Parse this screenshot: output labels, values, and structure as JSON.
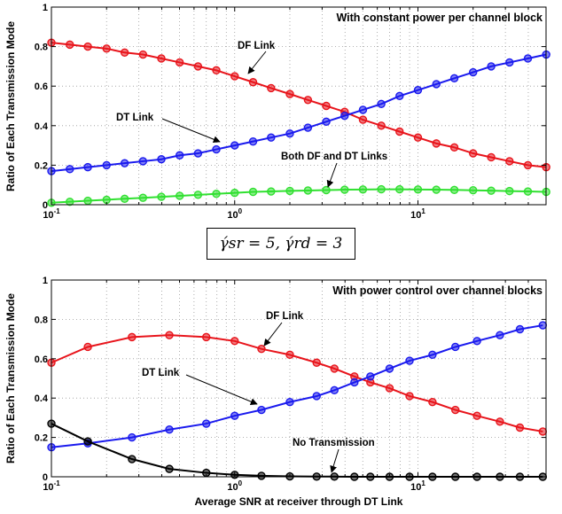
{
  "caption": "γ́sr = 5, γ́rd = 3",
  "colors": {
    "red": "#e8141b",
    "blue": "#1a1aee",
    "green": "#30e030",
    "black": "#000000",
    "grid": "#9a9a9a"
  },
  "chart_data": [
    {
      "type": "line",
      "title": "With constant power per channel block",
      "xlabel": "",
      "ylabel": "Ratio of Each Transmission Mode",
      "xscale": "log",
      "xlim": [
        0.1,
        50
      ],
      "ylim": [
        0,
        1
      ],
      "xticks": [
        "10^-1",
        "10^0",
        "10^1"
      ],
      "yticks": [
        "0",
        "0.2",
        "0.4",
        "0.6",
        "0.8",
        "1"
      ],
      "grid": true,
      "x": [
        0.1,
        0.126,
        0.158,
        0.2,
        0.251,
        0.316,
        0.398,
        0.501,
        0.631,
        0.794,
        1.0,
        1.26,
        1.58,
        2.0,
        2.51,
        3.16,
        3.98,
        5.01,
        6.31,
        7.94,
        10.0,
        12.6,
        15.8,
        20.0,
        25.1,
        31.6,
        39.8,
        50.1
      ],
      "series": [
        {
          "name": "DF Link",
          "color": "red",
          "values": [
            0.82,
            0.81,
            0.8,
            0.79,
            0.77,
            0.76,
            0.74,
            0.72,
            0.7,
            0.68,
            0.65,
            0.62,
            0.59,
            0.56,
            0.53,
            0.5,
            0.47,
            0.43,
            0.4,
            0.37,
            0.34,
            0.31,
            0.29,
            0.26,
            0.24,
            0.22,
            0.2,
            0.19
          ]
        },
        {
          "name": "DT Link",
          "color": "blue",
          "values": [
            0.17,
            0.18,
            0.19,
            0.2,
            0.21,
            0.22,
            0.23,
            0.25,
            0.26,
            0.28,
            0.3,
            0.32,
            0.34,
            0.36,
            0.39,
            0.42,
            0.45,
            0.48,
            0.51,
            0.55,
            0.58,
            0.61,
            0.64,
            0.67,
            0.7,
            0.72,
            0.74,
            0.76
          ]
        },
        {
          "name": "Both DF and DT  Links",
          "color": "green",
          "values": [
            0.01,
            0.015,
            0.02,
            0.025,
            0.03,
            0.035,
            0.04,
            0.045,
            0.05,
            0.055,
            0.06,
            0.065,
            0.067,
            0.07,
            0.072,
            0.074,
            0.076,
            0.077,
            0.078,
            0.078,
            0.077,
            0.076,
            0.075,
            0.073,
            0.071,
            0.069,
            0.067,
            0.065
          ]
        }
      ],
      "annotations": [
        "With constant power per channel block",
        "DF Link",
        "DT Link",
        "Both DF and DT  Links"
      ]
    },
    {
      "type": "line",
      "title": "With power control over channel blocks",
      "xlabel": "Average SNR at receiver through DT Link",
      "ylabel": "Ratio of Each Transmission Mode",
      "xscale": "log",
      "xlim": [
        0.1,
        50
      ],
      "ylim": [
        0,
        1
      ],
      "xticks": [
        "10^-1",
        "10^0",
        "10^1"
      ],
      "yticks": [
        "0",
        "0.2",
        "0.4",
        "0.6",
        "0.8",
        "1"
      ],
      "grid": true,
      "x": [
        0.1,
        0.158,
        0.275,
        0.44,
        0.7,
        1.0,
        1.4,
        2.0,
        2.8,
        3.5,
        4.5,
        5.5,
        7.0,
        9.0,
        12.0,
        16.0,
        21.0,
        28.0,
        36.0,
        48.0
      ],
      "series": [
        {
          "name": "DF Link",
          "color": "red",
          "values": [
            0.58,
            0.66,
            0.71,
            0.72,
            0.71,
            0.69,
            0.65,
            0.62,
            0.58,
            0.55,
            0.51,
            0.48,
            0.45,
            0.41,
            0.38,
            0.34,
            0.31,
            0.28,
            0.25,
            0.23
          ]
        },
        {
          "name": "DT Link",
          "color": "blue",
          "values": [
            0.15,
            0.17,
            0.2,
            0.24,
            0.27,
            0.31,
            0.34,
            0.38,
            0.41,
            0.44,
            0.48,
            0.51,
            0.55,
            0.59,
            0.62,
            0.66,
            0.69,
            0.72,
            0.75,
            0.77
          ]
        },
        {
          "name": "No Transmission",
          "color": "black",
          "values": [
            0.27,
            0.18,
            0.09,
            0.04,
            0.02,
            0.01,
            0.005,
            0.002,
            0.001,
            0.001,
            0.0,
            0.0,
            0.0,
            0.0,
            0.0,
            0.0,
            0.0,
            0.0,
            0.0,
            0.0
          ]
        }
      ],
      "annotations": [
        "With power control over channel blocks",
        "DF Link",
        "DT Link",
        "No Transmission"
      ]
    }
  ]
}
